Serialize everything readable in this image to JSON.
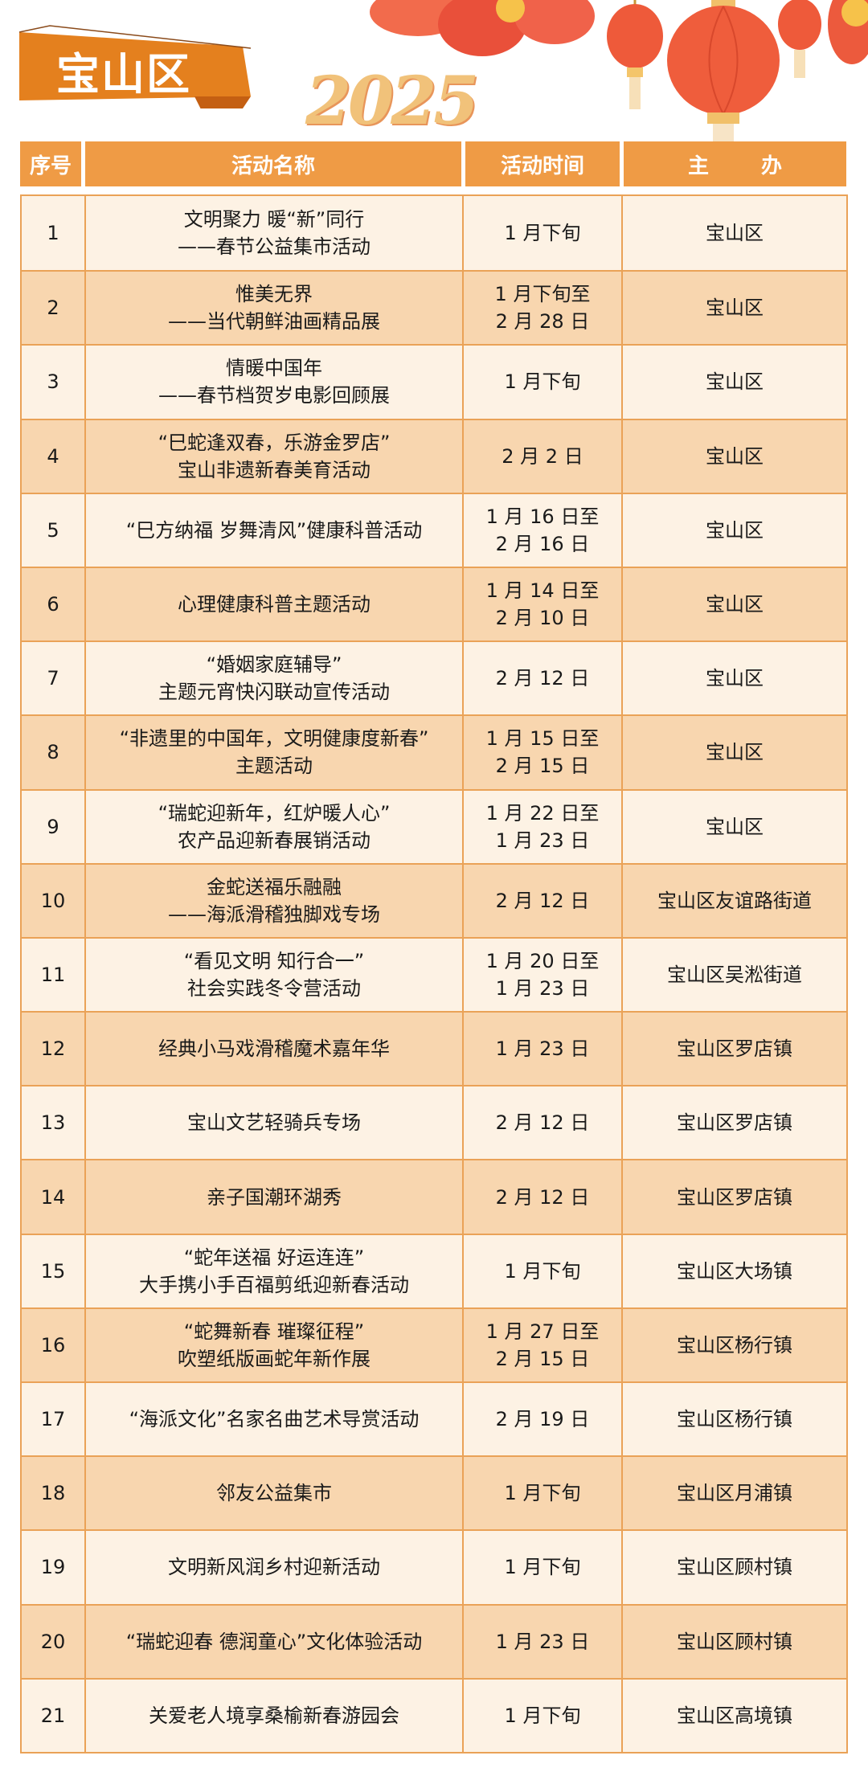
{
  "title": "宝山区",
  "year_art": "2025",
  "colors": {
    "header": "#ef9b45",
    "banner": "#e4801e",
    "row_light": "#fdf2e4",
    "row_dark": "#f8d6af",
    "border": "#eaa257"
  },
  "table": {
    "headers": [
      "序号",
      "活动名称",
      "活动时间",
      "主 办"
    ],
    "rows": [
      {
        "no": "1",
        "name": "文明聚力 暖“新”同行\n——春节公益集市活动",
        "time": "1 月下旬",
        "host": "宝山区"
      },
      {
        "no": "2",
        "name": "惟美无界\n——当代朝鲜油画精品展",
        "time": "1 月下旬至\n2 月 28 日",
        "host": "宝山区"
      },
      {
        "no": "3",
        "name": "情暖中国年\n——春节档贺岁电影回顾展",
        "time": "1 月下旬",
        "host": "宝山区"
      },
      {
        "no": "4",
        "name": "“巳蛇逢双春，乐游金罗店”\n宝山非遗新春美育活动",
        "time": "2 月 2 日",
        "host": "宝山区"
      },
      {
        "no": "5",
        "name": "“巳方纳福 岁舞清风”健康科普活动",
        "time": "1 月 16 日至\n2 月 16 日",
        "host": "宝山区"
      },
      {
        "no": "6",
        "name": "心理健康科普主题活动",
        "time": "1 月 14 日至\n2 月 10 日",
        "host": "宝山区"
      },
      {
        "no": "7",
        "name": "“婚姻家庭辅导”\n主题元宵快闪联动宣传活动",
        "time": "2 月 12 日",
        "host": "宝山区"
      },
      {
        "no": "8",
        "name": "“非遗里的中国年，文明健康度新春”\n主题活动",
        "time": "1 月 15 日至\n2 月 15 日",
        "host": "宝山区"
      },
      {
        "no": "9",
        "name": "“瑞蛇迎新年，红炉暖人心”\n农产品迎新春展销活动",
        "time": "1 月 22 日至\n1 月 23 日",
        "host": "宝山区"
      },
      {
        "no": "10",
        "name": "金蛇送福乐融融\n——海派滑稽独脚戏专场",
        "time": "2 月 12 日",
        "host": "宝山区友谊路街道"
      },
      {
        "no": "11",
        "name": "“看见文明 知行合一”\n社会实践冬令营活动",
        "time": "1 月 20 日至\n1 月 23 日",
        "host": "宝山区吴淞街道"
      },
      {
        "no": "12",
        "name": "经典小马戏滑稽魔术嘉年华",
        "time": "1 月 23 日",
        "host": "宝山区罗店镇"
      },
      {
        "no": "13",
        "name": "宝山文艺轻骑兵专场",
        "time": "2 月 12 日",
        "host": "宝山区罗店镇"
      },
      {
        "no": "14",
        "name": "亲子国潮环湖秀",
        "time": "2 月 12 日",
        "host": "宝山区罗店镇"
      },
      {
        "no": "15",
        "name": "“蛇年送福 好运连连”\n大手携小手百福剪纸迎新春活动",
        "time": "1 月下旬",
        "host": "宝山区大场镇"
      },
      {
        "no": "16",
        "name": "“蛇舞新春 璀璨征程”\n吹塑纸版画蛇年新作展",
        "time": "1 月 27 日至\n2 月 15 日",
        "host": "宝山区杨行镇"
      },
      {
        "no": "17",
        "name": "“海派文化”名家名曲艺术导赏活动",
        "time": "2 月 19 日",
        "host": "宝山区杨行镇"
      },
      {
        "no": "18",
        "name": "邻友公益集市",
        "time": "1 月下旬",
        "host": "宝山区月浦镇"
      },
      {
        "no": "19",
        "name": "文明新风润乡村迎新活动",
        "time": "1 月下旬",
        "host": "宝山区顾村镇"
      },
      {
        "no": "20",
        "name": "“瑞蛇迎春 德润童心”文化体验活动",
        "time": "1 月 23 日",
        "host": "宝山区顾村镇"
      },
      {
        "no": "21",
        "name": "关爱老人境享桑榆新春游园会",
        "time": "1 月下旬",
        "host": "宝山区高境镇"
      }
    ]
  }
}
